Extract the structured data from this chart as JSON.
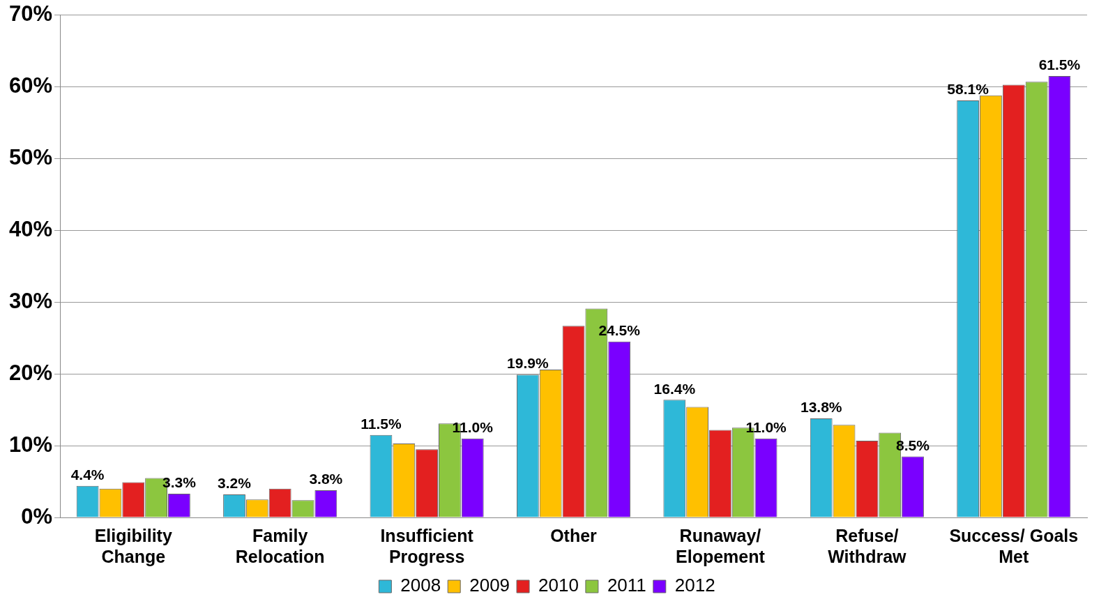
{
  "chart_data": {
    "type": "bar",
    "categories": [
      "Eligibility Change",
      "Family Relocation",
      "Insufficient Progress",
      "Other",
      "Runaway/ Elopement",
      "Refuse/ Withdraw",
      "Success/ Goals Met"
    ],
    "series": [
      {
        "name": "2008",
        "color": "#2eb8d8",
        "values": [
          4.4,
          3.2,
          11.5,
          19.9,
          16.4,
          13.8,
          58.1
        ],
        "value_labels": [
          "4.4%",
          "3.2%",
          "11.5%",
          "19.9%",
          "16.4%",
          "13.8%",
          "58.1%"
        ]
      },
      {
        "name": "2009",
        "color": "#ffc000",
        "values": [
          4.0,
          2.5,
          10.3,
          20.6,
          15.4,
          12.9,
          58.8
        ]
      },
      {
        "name": "2010",
        "color": "#e32020",
        "values": [
          4.9,
          4.0,
          9.5,
          26.7,
          12.2,
          10.7,
          60.3
        ]
      },
      {
        "name": "2011",
        "color": "#8cc63f",
        "values": [
          5.5,
          2.4,
          13.1,
          29.1,
          12.5,
          11.8,
          60.7
        ]
      },
      {
        "name": "2012",
        "color": "#7a00ff",
        "values": [
          3.3,
          3.8,
          11.0,
          24.5,
          11.0,
          8.5,
          61.5
        ],
        "value_labels": [
          "3.3%",
          "3.8%",
          "11.0%",
          "24.5%",
          "11.0%",
          "8.5%",
          "61.5%"
        ]
      }
    ],
    "ylim": [
      0,
      70
    ],
    "yticks": [
      {
        "value": 0,
        "label": "0%"
      },
      {
        "value": 10,
        "label": "10%"
      },
      {
        "value": 20,
        "label": "20%"
      },
      {
        "value": 30,
        "label": "30%"
      },
      {
        "value": 40,
        "label": "40%"
      },
      {
        "value": 50,
        "label": "50%"
      },
      {
        "value": 60,
        "label": "60%"
      },
      {
        "value": 70,
        "label": "70%"
      }
    ],
    "grid": "y",
    "legend": "bottom"
  }
}
